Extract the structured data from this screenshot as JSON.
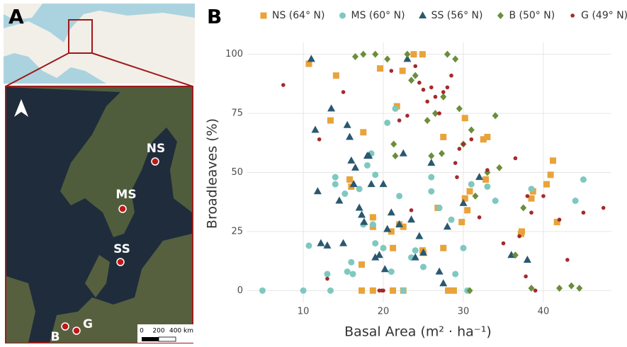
{
  "map": {
    "panel_label": "A",
    "sites": [
      {
        "label": "NS"
      },
      {
        "label": "MS"
      },
      {
        "label": "SS"
      },
      {
        "label": "B"
      },
      {
        "label": "G"
      }
    ],
    "scale_bar": {
      "labels": [
        "0",
        "200",
        "400 km"
      ]
    }
  },
  "chart_data": {
    "type": "scatter",
    "panel_label": "B",
    "x_label": "Basal Area (m² · ha⁻¹)",
    "y_label": "Broadleaves (%)",
    "xlim": [
      3,
      48.5
    ],
    "ylim": [
      -5,
      105
    ],
    "xticks": [
      10,
      20,
      30,
      40
    ],
    "yticks": [
      0,
      25,
      50,
      75,
      100
    ],
    "grid": true,
    "legend_position": "top",
    "series": [
      {
        "name": "NS (64° N)",
        "color": "#e8a33a",
        "marker": "square",
        "x": [
          10.7,
          14.1,
          13.4,
          16,
          15.8,
          17.5,
          19.6,
          21.7,
          22.4,
          23.8,
          24.9,
          27.5,
          30.2,
          32.5,
          33,
          41.2,
          40.9,
          40.4,
          38.7,
          38.5,
          32.8,
          30.8,
          30.2,
          30.5,
          29.8,
          26.8,
          18.7,
          18.7,
          21,
          22,
          22.5,
          21.2,
          24.9,
          25,
          27.5,
          17.3,
          17.3,
          18.7,
          21.2,
          22.5,
          28.1,
          28.8,
          41.7,
          37.3,
          37.2
        ],
        "y": [
          96,
          91,
          72,
          44,
          47,
          67,
          94,
          78,
          93,
          100,
          100,
          65,
          73,
          64,
          65,
          55,
          49,
          45,
          42,
          39,
          47,
          42,
          39,
          34,
          29,
          35,
          31,
          27,
          25,
          28,
          27,
          18,
          17,
          16,
          18,
          11,
          0,
          0,
          0,
          0,
          0,
          0,
          29,
          25,
          24
        ]
      },
      {
        "name": "MS (60° N)",
        "color": "#7fc8c0",
        "marker": "circle",
        "x": [
          4.9,
          10,
          13.4,
          10.7,
          14,
          14,
          15.2,
          13,
          15.5,
          16,
          17,
          18.5,
          18,
          19,
          17.5,
          18.7,
          20,
          20.5,
          21.5,
          22,
          23.5,
          25,
          26,
          27,
          28.5,
          29,
          30,
          31,
          33,
          34,
          38.5,
          45,
          44,
          26,
          24,
          30.5,
          22.5,
          19,
          16.2,
          21
        ],
        "y": [
          0,
          0,
          0,
          19,
          48,
          45,
          41,
          7,
          8,
          12,
          43,
          58,
          53,
          49,
          28,
          28,
          18,
          71,
          77,
          40,
          14,
          10,
          48,
          35,
          30,
          7,
          18,
          45,
          44,
          38,
          43,
          47,
          38,
          42,
          17,
          0,
          0,
          20,
          7,
          8
        ]
      },
      {
        "name": "SS (56° N)",
        "color": "#2a5870",
        "marker": "triangle",
        "x": [
          11,
          11.5,
          11.8,
          12.2,
          13,
          13.5,
          14.5,
          15,
          15.5,
          15.8,
          16,
          16.5,
          17,
          17.3,
          17.6,
          18,
          18.2,
          18.5,
          19,
          19.5,
          20,
          20.5,
          21,
          22,
          22.5,
          23,
          24,
          24.5,
          25,
          26,
          27,
          27.5,
          28,
          30,
          32,
          36,
          38,
          23.5,
          20.2,
          16.3
        ],
        "y": [
          98,
          68,
          42,
          20,
          19,
          77,
          38,
          20,
          70,
          65,
          55,
          52,
          35,
          32,
          29,
          57,
          57,
          45,
          14,
          15,
          45,
          26,
          33,
          28,
          58,
          98,
          14,
          23,
          16,
          54,
          8,
          3,
          27,
          37,
          48,
          15,
          13,
          30,
          9,
          45
        ]
      },
      {
        "name": "B (50° N)",
        "color": "#6b8e3a",
        "marker": "diamond",
        "x": [
          16.5,
          17.5,
          19,
          20.5,
          21.5,
          23,
          24,
          25.5,
          26,
          27.5,
          28,
          29,
          29.5,
          30,
          31,
          33,
          34,
          34.5,
          36.5,
          37.5,
          38.5,
          42,
          43.5,
          44.5,
          23.5,
          21.3,
          27.3,
          31.5,
          30.8,
          26.5
        ],
        "y": [
          99,
          100,
          100,
          98,
          57,
          100,
          91,
          72,
          57,
          82,
          100,
          98,
          77,
          62,
          68,
          50,
          74,
          52,
          15,
          35,
          1,
          1,
          2,
          1,
          89,
          62,
          58,
          40,
          0,
          75
        ]
      },
      {
        "name": "G (49° N)",
        "color": "#a52a2a",
        "marker": "dot",
        "x": [
          7.5,
          12,
          13,
          15,
          19.5,
          20,
          21,
          22,
          23,
          24,
          24.5,
          25,
          25.5,
          26,
          26.5,
          27,
          27.5,
          28,
          28.5,
          29,
          29.5,
          30,
          31,
          32,
          33,
          35,
          36.5,
          37,
          37.8,
          38,
          38.5,
          39,
          40,
          42,
          43,
          45,
          47.5,
          19.8,
          23.5,
          29.2
        ],
        "y": [
          87,
          64,
          5,
          84,
          0,
          0,
          93,
          72,
          74,
          95,
          88,
          85,
          80,
          86,
          82,
          75,
          84,
          86,
          91,
          54,
          60,
          62,
          64,
          31,
          51,
          20,
          56,
          23,
          6,
          40,
          33,
          0,
          40,
          30,
          13,
          33,
          35,
          0,
          34,
          48
        ]
      }
    ]
  }
}
